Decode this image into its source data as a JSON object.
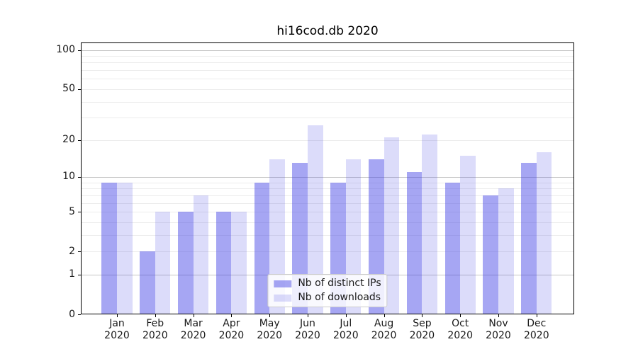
{
  "chart_data": {
    "type": "bar",
    "title": "hi16cod.db 2020",
    "categories": [
      "Jan",
      "Feb",
      "Mar",
      "Apr",
      "May",
      "Jun",
      "Jul",
      "Aug",
      "Sep",
      "Oct",
      "Nov",
      "Dec"
    ],
    "x_tick_year": "2020",
    "series": [
      {
        "name": "Nb of distinct IPs",
        "color": "rgba(70,70,230,0.48)",
        "values": [
          9,
          2,
          5,
          5,
          9,
          13,
          9,
          14,
          11,
          9,
          7,
          13
        ]
      },
      {
        "name": "Nb of downloads",
        "color": "rgba(70,70,230,0.19)",
        "values": [
          9,
          5,
          7,
          5,
          14,
          26,
          14,
          21,
          22,
          15,
          8,
          16
        ]
      }
    ],
    "y_axis": {
      "scale": "log1p",
      "ticks": [
        0,
        1,
        2,
        5,
        10,
        20,
        50,
        100
      ],
      "minor_gridlines": [
        2,
        3,
        4,
        5,
        6,
        7,
        8,
        9,
        20,
        30,
        40,
        50,
        60,
        70,
        80,
        90
      ],
      "major_gridlines": [
        1,
        10,
        100
      ],
      "max_value": 114
    },
    "legend_position": "lower center",
    "grid": "on",
    "colors": {
      "grid_minor": "#ececec",
      "grid_major": "#c4c4c4",
      "axis": "#000000",
      "text": "#1a1a1a"
    }
  }
}
